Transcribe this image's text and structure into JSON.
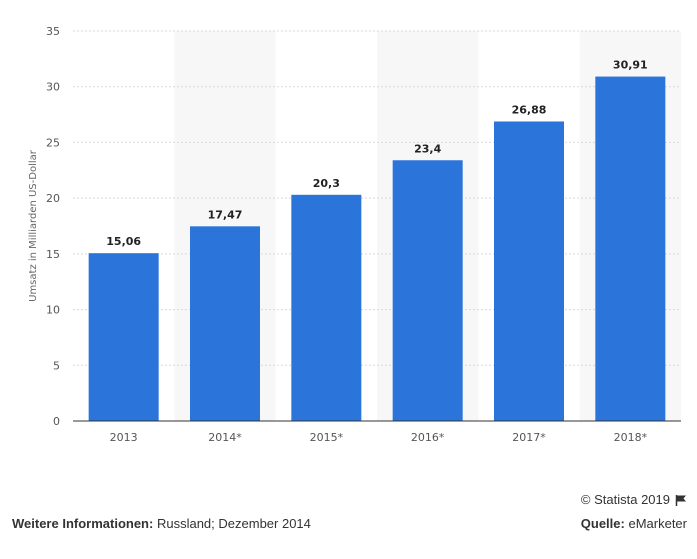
{
  "chart_data": {
    "type": "bar",
    "categories": [
      "2013",
      "2014*",
      "2015*",
      "2016*",
      "2017*",
      "2018*"
    ],
    "values": [
      15.06,
      17.47,
      20.3,
      23.4,
      26.88,
      30.91
    ],
    "value_labels": [
      "15,06",
      "17,47",
      "20,3",
      "23,4",
      "26,88",
      "30,91"
    ],
    "ylabel": "Umsatz in Milliarden US-Dollar",
    "xlabel": "",
    "ylim": [
      0,
      35
    ],
    "yticks": [
      0,
      5,
      10,
      15,
      20,
      25,
      30,
      35
    ],
    "grid": true,
    "bar_color": "#2a74da",
    "alt_band_color": "#f7f7f7"
  },
  "footer": {
    "copyright": "© Statista 2019",
    "info_label": "Weitere Informationen:",
    "info_text": "Russland; Dezember 2014",
    "source_label": "Quelle:",
    "source_text": "eMarketer"
  },
  "icons": {
    "flag": "flag-icon"
  }
}
